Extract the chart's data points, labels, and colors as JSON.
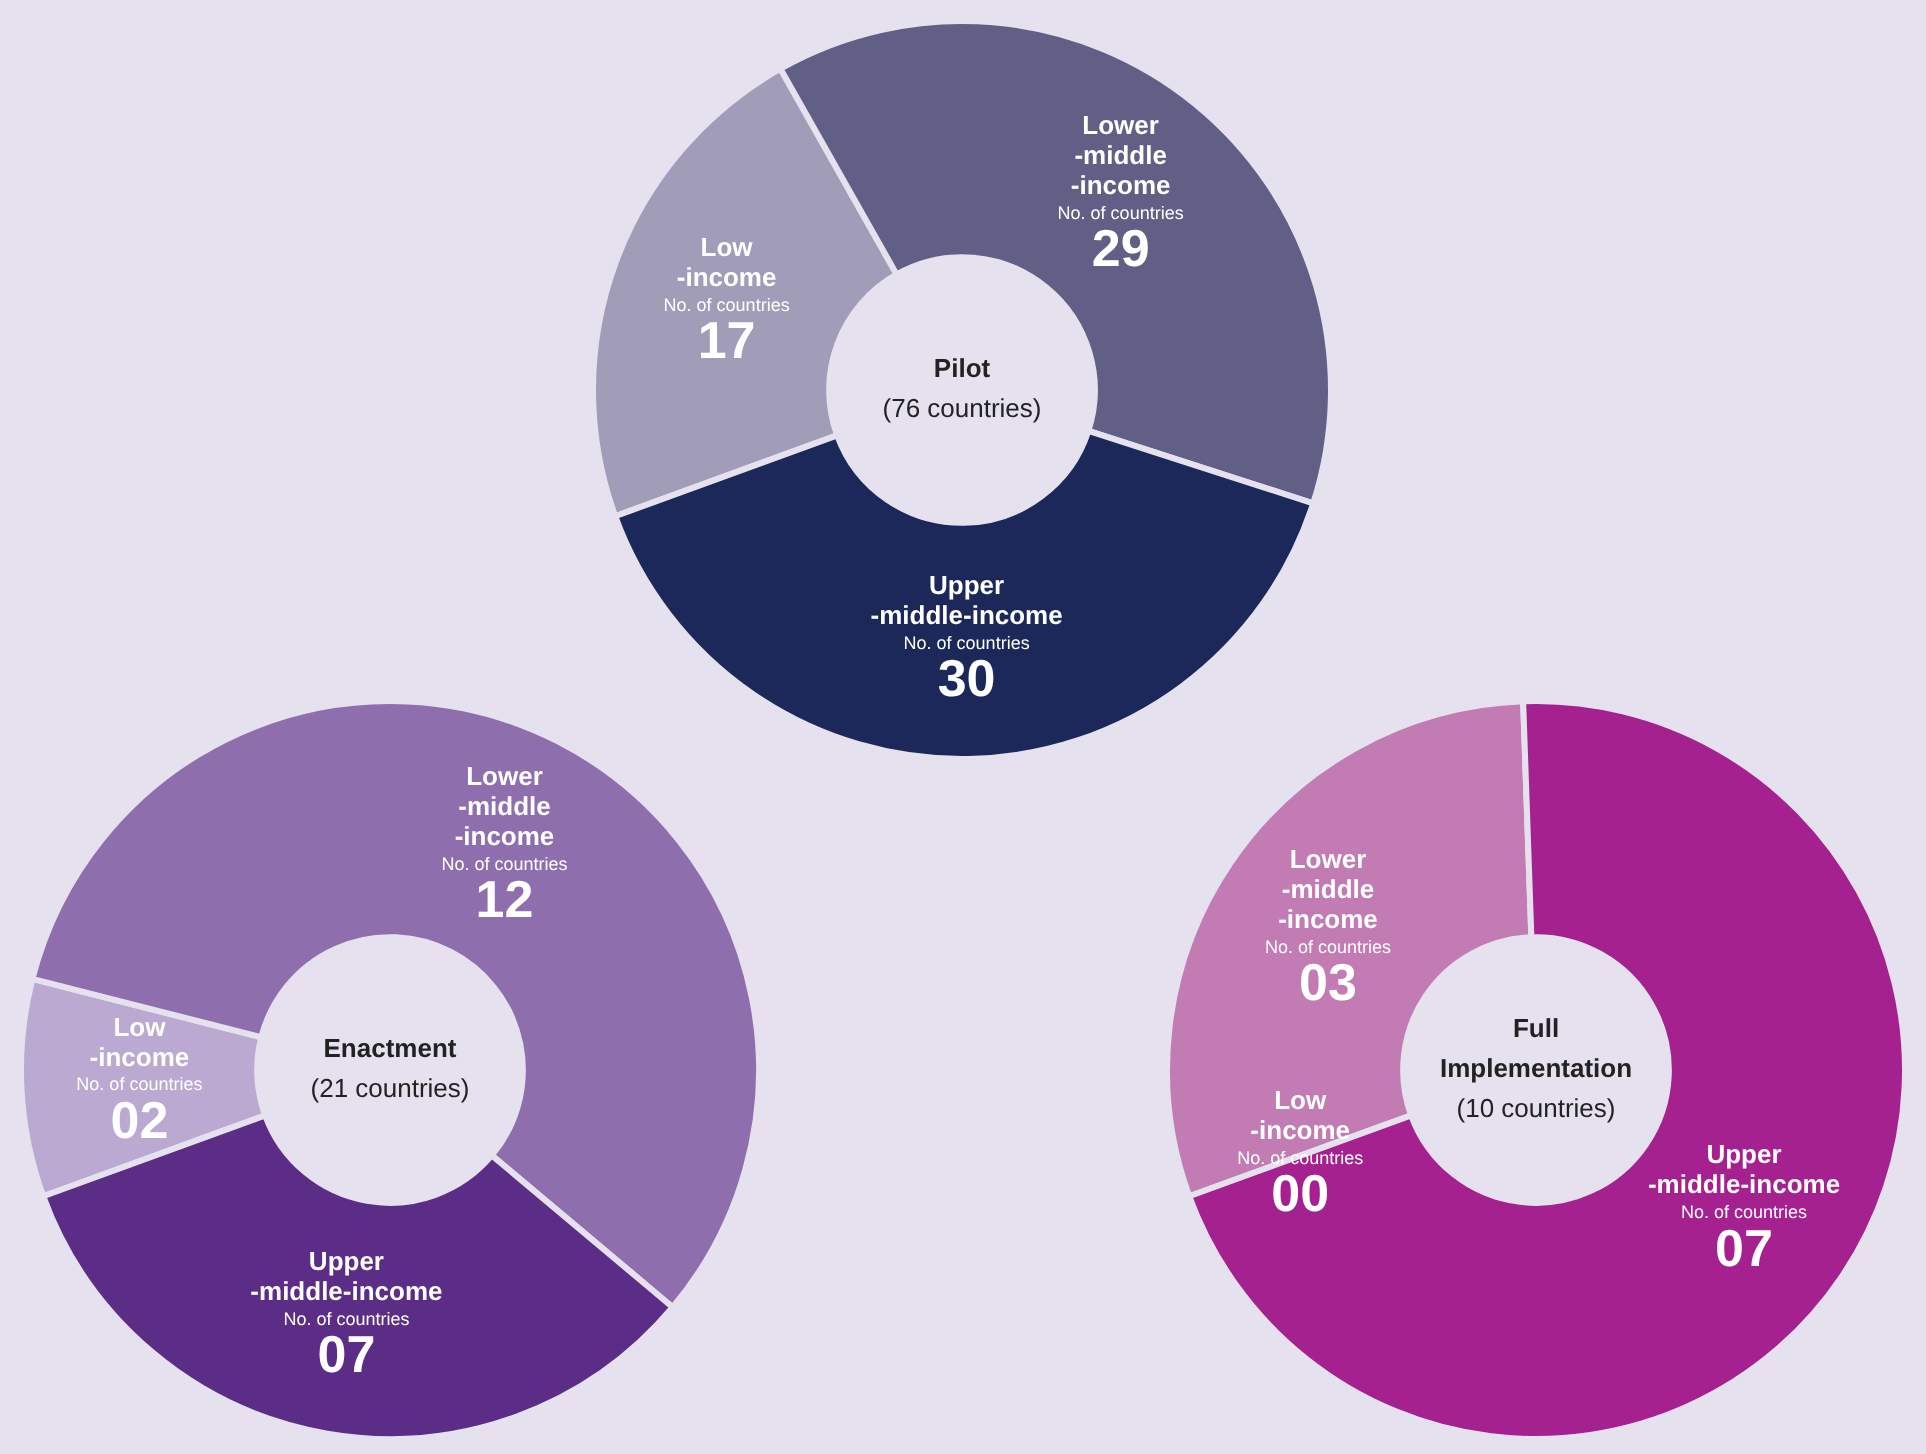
{
  "chart_data": [
    {
      "type": "donut",
      "title": "Pilot",
      "subtitle": "(76 countries)",
      "categories": [
        "Low\n-income",
        "Lower\n-middle\n-income",
        "Upper\n-middle-income"
      ],
      "values": [
        17,
        29,
        30
      ],
      "value_labels": [
        "17",
        "29",
        "30"
      ],
      "colors": [
        "#a19db8",
        "#625f87",
        "#1c2859"
      ],
      "annotations": [
        "No. of countries"
      ]
    },
    {
      "type": "donut",
      "title": "Enactment",
      "subtitle": "(21 countries)",
      "categories": [
        "Low\n-income",
        "Lower\n-middle\n-income",
        "Upper\n-middle-income"
      ],
      "values": [
        2,
        12,
        7
      ],
      "value_labels": [
        "02",
        "12",
        "07"
      ],
      "colors": [
        "#bba9d1",
        "#8f6eae",
        "#5c2d86"
      ],
      "annotations": [
        "No. of countries"
      ]
    },
    {
      "type": "donut",
      "title": "Full\nImplementation",
      "subtitle": "(10 countries)",
      "categories": [
        "Low\n-income",
        "Lower\n-middle\n-income",
        "Upper\n-middle-income"
      ],
      "values": [
        0,
        3,
        7
      ],
      "value_labels": [
        "00",
        "03",
        "07"
      ],
      "colors": [
        "#dcb3d5",
        "#c37cb3",
        "#a4218f"
      ],
      "annotations": [
        "No. of countries"
      ]
    }
  ]
}
